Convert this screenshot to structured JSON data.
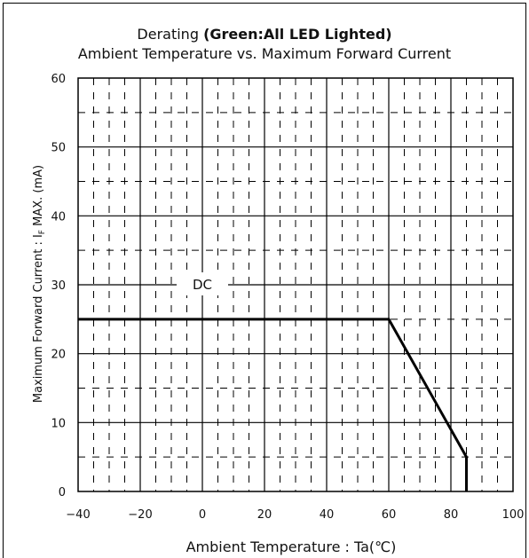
{
  "chart_data": {
    "type": "line",
    "title_prefix": "Derating ",
    "title_bold": "(Green:All LED Lighted)",
    "subtitle": "Ambient Temperature vs. Maximum Forward Current",
    "xlabel": "Ambient Temperature : Ta(℃)",
    "ylabel_main": "Maximum Forward Current : I",
    "ylabel_sub": "F",
    "ylabel_tail": " MAX. (mA)",
    "xlim": [
      -40,
      100
    ],
    "ylim": [
      0,
      60
    ],
    "x_ticks": [
      "−40",
      "−20",
      "0",
      "20",
      "40",
      "60",
      "80",
      "100"
    ],
    "x_tick_values": [
      -40,
      -20,
      0,
      20,
      40,
      60,
      80,
      100
    ],
    "y_ticks": [
      "0",
      "10",
      "20",
      "30",
      "40",
      "50",
      "60"
    ],
    "y_tick_values": [
      0,
      10,
      20,
      30,
      40,
      50,
      60
    ],
    "grid": true,
    "series": [
      {
        "name": "DC",
        "x": [
          -40,
          60,
          85,
          85
        ],
        "y": [
          25,
          25,
          5,
          0
        ]
      }
    ],
    "annotation": {
      "text": "DC",
      "x": 0,
      "y": 30
    }
  }
}
